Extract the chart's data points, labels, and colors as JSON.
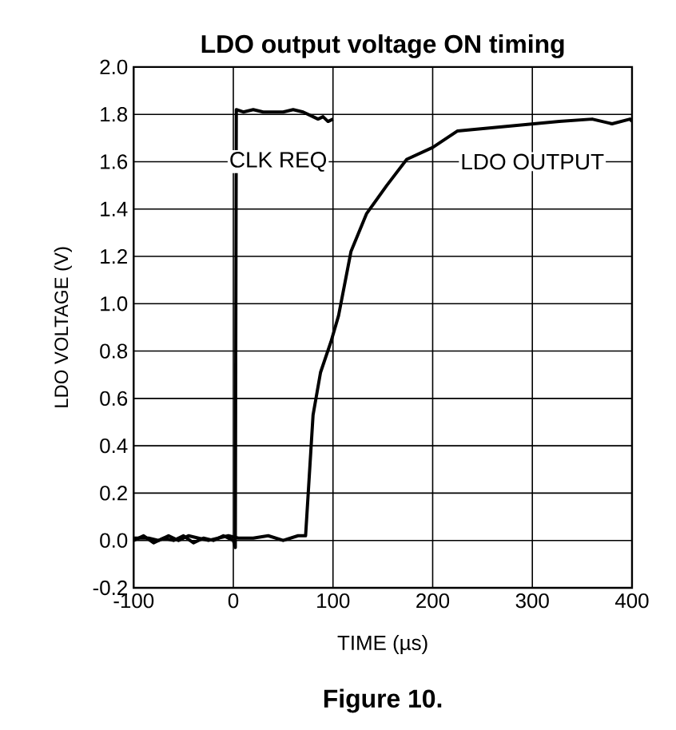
{
  "chart_data": {
    "type": "line",
    "title": "LDO output voltage ON timing",
    "xlabel": "TIME (µs)",
    "ylabel": "LDO VOLTAGE (V)",
    "annotations": [
      "Figure 10."
    ],
    "xlim": [
      -100,
      400
    ],
    "ylim": [
      -0.2,
      2.0
    ],
    "xticks": [
      -100,
      0,
      100,
      200,
      300,
      400
    ],
    "yticks": [
      {
        "value": -0.2,
        "label": "-0.2"
      },
      {
        "value": 0,
        "label": "0.0"
      },
      {
        "value": 0.2,
        "label": "0.2"
      },
      {
        "value": 0.4,
        "label": "0.4"
      },
      {
        "value": 0.6,
        "label": "0.6"
      },
      {
        "value": 0.8,
        "label": "0.8"
      },
      {
        "value": 1.0,
        "label": "1.0"
      },
      {
        "value": 1.2,
        "label": "1.2"
      },
      {
        "value": 1.4,
        "label": "1.4"
      },
      {
        "value": 1.6,
        "label": "1.6"
      },
      {
        "value": 1.8,
        "label": "1.8"
      },
      {
        "value": 2.0,
        "label": "2.0"
      }
    ],
    "grid": true,
    "legend": false,
    "marker": "none",
    "line_style": "solid",
    "series": [
      {
        "name": "CLK REQ",
        "color": "#000000",
        "x": [
          -100,
          -90,
          -80,
          -70,
          -60,
          -50,
          -40,
          -30,
          -20,
          -10,
          0,
          2,
          3,
          10,
          20,
          30,
          40,
          50,
          60,
          70,
          75,
          80,
          85,
          90,
          95,
          100
        ],
        "values": [
          0.0,
          0.02,
          -0.01,
          0.01,
          0.0,
          0.02,
          -0.01,
          0.01,
          0.0,
          0.02,
          0.0,
          -0.03,
          1.82,
          1.81,
          1.82,
          1.81,
          1.81,
          1.81,
          1.82,
          1.81,
          1.8,
          1.79,
          1.78,
          1.79,
          1.77,
          1.78
        ]
      },
      {
        "name": "LDO OUTPUT",
        "color": "#000000",
        "x": [
          -100,
          -85,
          -75,
          -65,
          -55,
          -45,
          -35,
          -25,
          -15,
          -5,
          5,
          20,
          35,
          50,
          65,
          72.5,
          75,
          80,
          87.5,
          98,
          105.6,
          118,
          133.6,
          154,
          174,
          200,
          225,
          276,
          327,
          360,
          380,
          398,
          400
        ],
        "values": [
          0.01,
          0.01,
          0.0,
          0.02,
          0.0,
          0.02,
          0.01,
          0.0,
          0.01,
          0.02,
          0.01,
          0.01,
          0.02,
          0.0,
          0.02,
          0.02,
          0.19,
          0.53,
          0.71,
          0.84,
          0.95,
          1.22,
          1.38,
          1.5,
          1.61,
          1.66,
          1.73,
          1.75,
          1.77,
          1.78,
          1.76,
          1.78,
          1.77
        ]
      }
    ]
  }
}
